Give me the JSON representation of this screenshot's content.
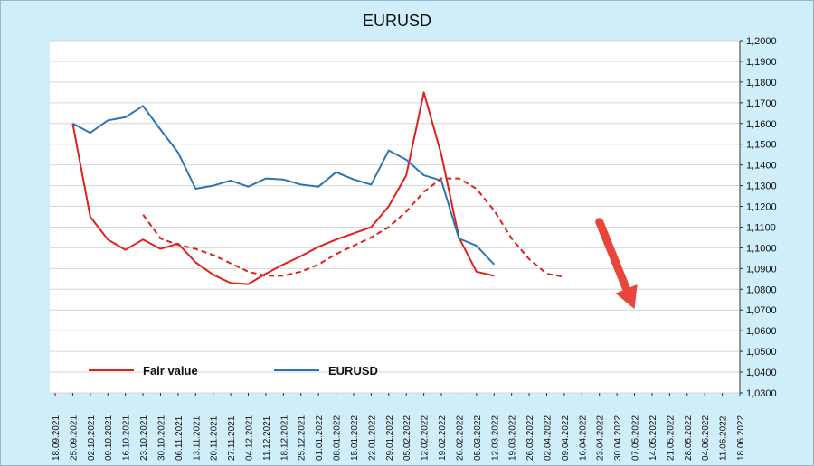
{
  "chart_data": {
    "type": "line",
    "title": "EURUSD",
    "ylim": [
      1.03,
      1.2
    ],
    "yticks": [
      "1,2000",
      "1,1900",
      "1,1800",
      "1,1700",
      "1,1600",
      "1,1500",
      "1,1400",
      "1,1300",
      "1,1200",
      "1,1100",
      "1,1000",
      "1,0900",
      "1,0800",
      "1,0700",
      "1,0600",
      "1,0500",
      "1,0400",
      "1,0300"
    ],
    "x": [
      "18.09.2021",
      "25.09.2021",
      "02.10.2021",
      "09.10.2021",
      "16.10.2021",
      "23.10.2021",
      "30.10.2021",
      "06.11.2021",
      "13.11.2021",
      "20.11.2021",
      "27.11.2021",
      "04.12.2021",
      "11.12.2021",
      "18.12.2021",
      "25.12.2021",
      "01.01.2022",
      "08.01.2022",
      "15.01.2022",
      "22.01.2022",
      "29.01.2022",
      "05.02.2022",
      "12.02.2022",
      "19.02.2022",
      "26.02.2022",
      "05.03.2022",
      "12.03.2022",
      "19.03.2022",
      "26.03.2022",
      "02.04.2022",
      "09.04.2022",
      "16.04.2022",
      "23.04.2022",
      "30.04.2022",
      "07.05.2022",
      "14.05.2022",
      "21.05.2022",
      "28.05.2022",
      "04.06.2022",
      "11.06.2022",
      "18.06.2022"
    ],
    "grid": true,
    "legend_position": "bottom-left",
    "series": [
      {
        "name": "Fair value",
        "color": "#e0201b",
        "style": "solid",
        "values": [
          null,
          1.16,
          1.115,
          1.104,
          1.099,
          1.104,
          1.0995,
          1.102,
          1.093,
          1.087,
          1.083,
          1.0825,
          1.0875,
          1.092,
          1.096,
          1.1005,
          1.104,
          1.107,
          1.11,
          1.12,
          1.135,
          1.175,
          1.145,
          1.105,
          1.0885,
          1.0865,
          null,
          null,
          null,
          null,
          null,
          null,
          null,
          null,
          null,
          null,
          null,
          null,
          null,
          null
        ]
      },
      {
        "name": "EURUSD",
        "color": "#2e75b6",
        "style": "solid",
        "values": [
          null,
          1.16,
          1.1555,
          1.1615,
          1.163,
          1.1685,
          1.157,
          1.146,
          1.1285,
          1.13,
          1.1325,
          1.1295,
          1.1335,
          1.133,
          1.1305,
          1.1295,
          1.1365,
          1.133,
          1.1305,
          1.147,
          1.1425,
          1.135,
          1.1325,
          1.1045,
          1.101,
          1.092,
          null,
          null,
          null,
          null,
          null,
          null,
          null,
          null,
          null,
          null,
          null,
          null,
          null,
          null
        ]
      },
      {
        "color": "#e0201b",
        "style": "dashed",
        "values": [
          null,
          null,
          null,
          null,
          null,
          1.116,
          1.1045,
          1.1015,
          1.0995,
          1.0965,
          1.0925,
          1.0885,
          1.0865,
          1.0865,
          1.0885,
          1.092,
          1.097,
          1.101,
          1.105,
          1.11,
          1.1175,
          1.127,
          1.1335,
          1.1335,
          1.1285,
          1.118,
          1.1045,
          1.0945,
          1.0875,
          1.086,
          null,
          null,
          null,
          null,
          null,
          null,
          null,
          null,
          null,
          null
        ]
      }
    ],
    "arrow": {
      "color": "#e8453c",
      "from": [
        "23.04.2022",
        1.1125
      ],
      "to": [
        "07.05.2022",
        1.0705
      ]
    }
  }
}
